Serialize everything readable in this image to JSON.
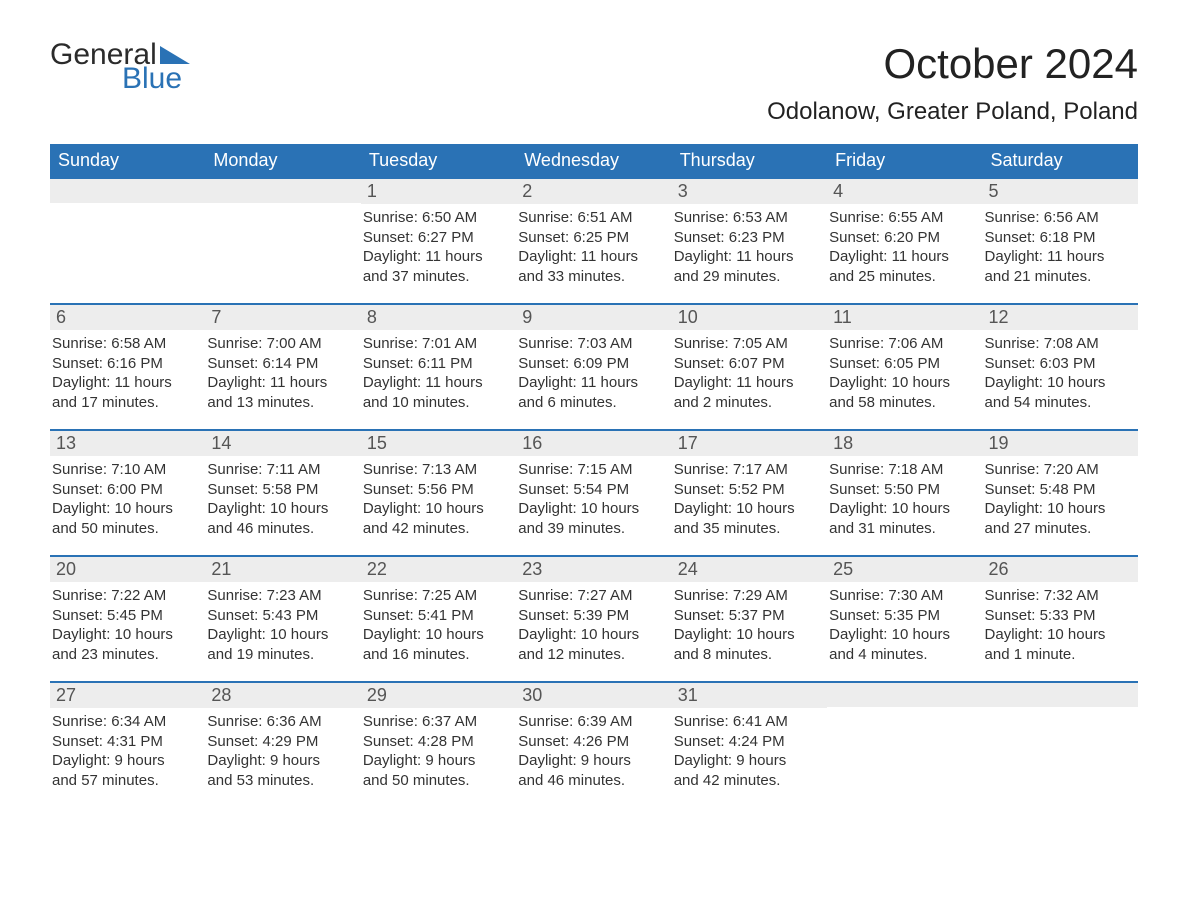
{
  "logo": {
    "text1": "General",
    "text2": "Blue",
    "tri_color": "#2a72b5"
  },
  "title": "October 2024",
  "location": "Odolanow, Greater Poland, Poland",
  "colors": {
    "header_bg": "#2a72b5",
    "header_text": "#ffffff",
    "daynum_bg": "#ededed",
    "daynum_text": "#555555",
    "body_text": "#333333",
    "rule": "#2a72b5"
  },
  "typography": {
    "title_fontsize": 42,
    "location_fontsize": 24,
    "dow_fontsize": 18,
    "daynum_fontsize": 18,
    "body_fontsize": 15
  },
  "days_of_week": [
    "Sunday",
    "Monday",
    "Tuesday",
    "Wednesday",
    "Thursday",
    "Friday",
    "Saturday"
  ],
  "labels": {
    "sunrise": "Sunrise:",
    "sunset": "Sunset:",
    "daylight": "Daylight:"
  },
  "weeks": [
    [
      {
        "n": "",
        "empty": true
      },
      {
        "n": "",
        "empty": true
      },
      {
        "n": "1",
        "sunrise": "6:50 AM",
        "sunset": "6:27 PM",
        "day_l1": "11 hours",
        "day_l2": "and 37 minutes."
      },
      {
        "n": "2",
        "sunrise": "6:51 AM",
        "sunset": "6:25 PM",
        "day_l1": "11 hours",
        "day_l2": "and 33 minutes."
      },
      {
        "n": "3",
        "sunrise": "6:53 AM",
        "sunset": "6:23 PM",
        "day_l1": "11 hours",
        "day_l2": "and 29 minutes."
      },
      {
        "n": "4",
        "sunrise": "6:55 AM",
        "sunset": "6:20 PM",
        "day_l1": "11 hours",
        "day_l2": "and 25 minutes."
      },
      {
        "n": "5",
        "sunrise": "6:56 AM",
        "sunset": "6:18 PM",
        "day_l1": "11 hours",
        "day_l2": "and 21 minutes."
      }
    ],
    [
      {
        "n": "6",
        "sunrise": "6:58 AM",
        "sunset": "6:16 PM",
        "day_l1": "11 hours",
        "day_l2": "and 17 minutes."
      },
      {
        "n": "7",
        "sunrise": "7:00 AM",
        "sunset": "6:14 PM",
        "day_l1": "11 hours",
        "day_l2": "and 13 minutes."
      },
      {
        "n": "8",
        "sunrise": "7:01 AM",
        "sunset": "6:11 PM",
        "day_l1": "11 hours",
        "day_l2": "and 10 minutes."
      },
      {
        "n": "9",
        "sunrise": "7:03 AM",
        "sunset": "6:09 PM",
        "day_l1": "11 hours",
        "day_l2": "and 6 minutes."
      },
      {
        "n": "10",
        "sunrise": "7:05 AM",
        "sunset": "6:07 PM",
        "day_l1": "11 hours",
        "day_l2": "and 2 minutes."
      },
      {
        "n": "11",
        "sunrise": "7:06 AM",
        "sunset": "6:05 PM",
        "day_l1": "10 hours",
        "day_l2": "and 58 minutes."
      },
      {
        "n": "12",
        "sunrise": "7:08 AM",
        "sunset": "6:03 PM",
        "day_l1": "10 hours",
        "day_l2": "and 54 minutes."
      }
    ],
    [
      {
        "n": "13",
        "sunrise": "7:10 AM",
        "sunset": "6:00 PM",
        "day_l1": "10 hours",
        "day_l2": "and 50 minutes."
      },
      {
        "n": "14",
        "sunrise": "7:11 AM",
        "sunset": "5:58 PM",
        "day_l1": "10 hours",
        "day_l2": "and 46 minutes."
      },
      {
        "n": "15",
        "sunrise": "7:13 AM",
        "sunset": "5:56 PM",
        "day_l1": "10 hours",
        "day_l2": "and 42 minutes."
      },
      {
        "n": "16",
        "sunrise": "7:15 AM",
        "sunset": "5:54 PM",
        "day_l1": "10 hours",
        "day_l2": "and 39 minutes."
      },
      {
        "n": "17",
        "sunrise": "7:17 AM",
        "sunset": "5:52 PM",
        "day_l1": "10 hours",
        "day_l2": "and 35 minutes."
      },
      {
        "n": "18",
        "sunrise": "7:18 AM",
        "sunset": "5:50 PM",
        "day_l1": "10 hours",
        "day_l2": "and 31 minutes."
      },
      {
        "n": "19",
        "sunrise": "7:20 AM",
        "sunset": "5:48 PM",
        "day_l1": "10 hours",
        "day_l2": "and 27 minutes."
      }
    ],
    [
      {
        "n": "20",
        "sunrise": "7:22 AM",
        "sunset": "5:45 PM",
        "day_l1": "10 hours",
        "day_l2": "and 23 minutes."
      },
      {
        "n": "21",
        "sunrise": "7:23 AM",
        "sunset": "5:43 PM",
        "day_l1": "10 hours",
        "day_l2": "and 19 minutes."
      },
      {
        "n": "22",
        "sunrise": "7:25 AM",
        "sunset": "5:41 PM",
        "day_l1": "10 hours",
        "day_l2": "and 16 minutes."
      },
      {
        "n": "23",
        "sunrise": "7:27 AM",
        "sunset": "5:39 PM",
        "day_l1": "10 hours",
        "day_l2": "and 12 minutes."
      },
      {
        "n": "24",
        "sunrise": "7:29 AM",
        "sunset": "5:37 PM",
        "day_l1": "10 hours",
        "day_l2": "and 8 minutes."
      },
      {
        "n": "25",
        "sunrise": "7:30 AM",
        "sunset": "5:35 PM",
        "day_l1": "10 hours",
        "day_l2": "and 4 minutes."
      },
      {
        "n": "26",
        "sunrise": "7:32 AM",
        "sunset": "5:33 PM",
        "day_l1": "10 hours",
        "day_l2": "and 1 minute."
      }
    ],
    [
      {
        "n": "27",
        "sunrise": "6:34 AM",
        "sunset": "4:31 PM",
        "day_l1": "9 hours",
        "day_l2": "and 57 minutes."
      },
      {
        "n": "28",
        "sunrise": "6:36 AM",
        "sunset": "4:29 PM",
        "day_l1": "9 hours",
        "day_l2": "and 53 minutes."
      },
      {
        "n": "29",
        "sunrise": "6:37 AM",
        "sunset": "4:28 PM",
        "day_l1": "9 hours",
        "day_l2": "and 50 minutes."
      },
      {
        "n": "30",
        "sunrise": "6:39 AM",
        "sunset": "4:26 PM",
        "day_l1": "9 hours",
        "day_l2": "and 46 minutes."
      },
      {
        "n": "31",
        "sunrise": "6:41 AM",
        "sunset": "4:24 PM",
        "day_l1": "9 hours",
        "day_l2": "and 42 minutes."
      },
      {
        "n": "",
        "empty": true
      },
      {
        "n": "",
        "empty": true
      }
    ]
  ]
}
